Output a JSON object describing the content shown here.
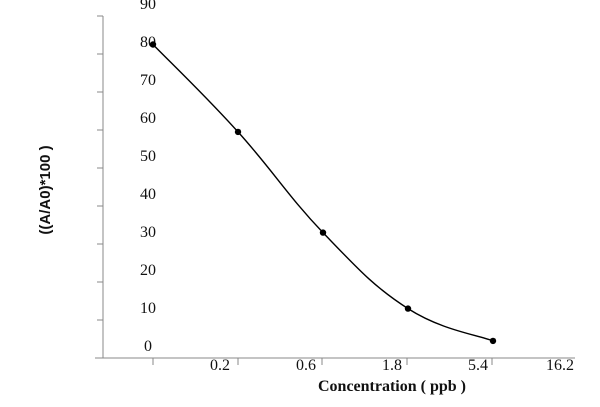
{
  "chart_data": {
    "type": "line",
    "title": "",
    "xlabel": "Concentration ( ppb )",
    "ylabel": "((A/A0)*100 )",
    "x_tick_labels": [
      "0.2",
      "0.6",
      "1.8",
      "5.4",
      "16.2"
    ],
    "y_tick_labels": [
      "0",
      "10",
      "20",
      "30",
      "40",
      "50",
      "60",
      "70",
      "80",
      "90"
    ],
    "ylim": [
      0,
      90
    ],
    "grid": false,
    "series": [
      {
        "name": "curve",
        "x_position": [
          0,
          1,
          2,
          3,
          4
        ],
        "values": [
          82.5,
          59.5,
          33,
          13,
          4.5
        ],
        "color": "#000000"
      }
    ]
  }
}
